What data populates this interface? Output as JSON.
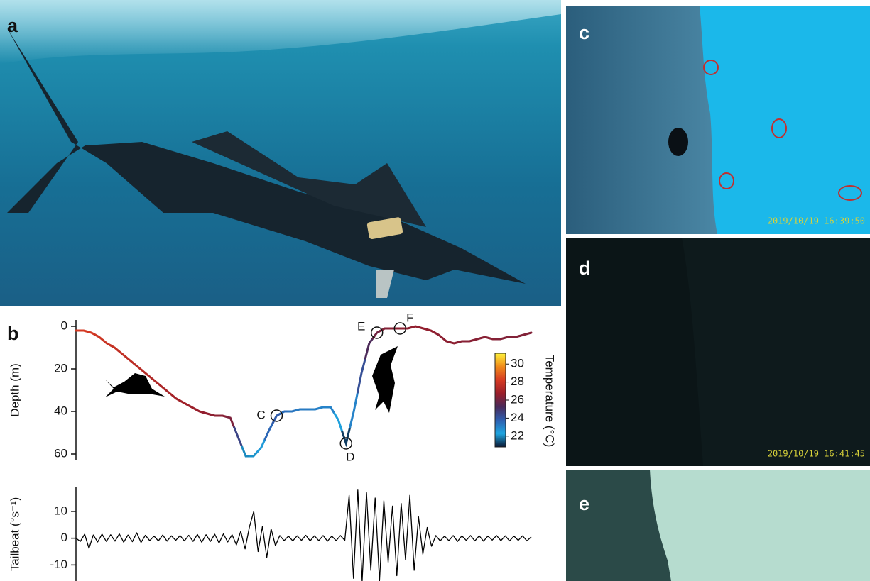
{
  "panels": {
    "a": "a",
    "b": "b",
    "c": "c",
    "d": "d",
    "e": "e"
  },
  "timestamps": {
    "c": "2019/10/19  16:39:50",
    "d": "2019/10/19  16:41:45"
  },
  "chart_data": [
    {
      "type": "line",
      "y_label": "Depth (m)",
      "y_inverted": true,
      "ylim": [
        -3,
        63
      ],
      "yticks": [
        0,
        20,
        40,
        60
      ],
      "values": [
        2,
        2,
        3,
        5,
        8,
        10,
        13,
        16,
        19,
        22,
        25,
        28,
        31,
        34,
        36,
        38,
        40,
        41,
        42,
        42,
        43,
        52,
        61,
        61,
        57,
        49,
        42,
        40,
        40,
        39,
        39,
        39,
        38,
        38,
        44,
        55,
        40,
        22,
        8,
        3,
        1,
        1,
        1,
        1,
        0,
        1,
        2,
        4,
        7,
        8,
        7,
        7,
        6,
        5,
        6,
        6,
        5,
        5,
        4,
        3
      ],
      "temperature": [
        28.2,
        28.2,
        28.1,
        28,
        27.9,
        27.8,
        27.7,
        27.6,
        27.5,
        27.4,
        27.3,
        27.2,
        27.1,
        27,
        26.9,
        26.8,
        26.7,
        26.6,
        26.5,
        26.4,
        26.2,
        24.5,
        22,
        22.1,
        22.5,
        23.6,
        23.9,
        23.5,
        23.3,
        23.2,
        23.2,
        23.1,
        23,
        23,
        22.4,
        21.2,
        23,
        24.2,
        25.3,
        26,
        26.3,
        26.4,
        26.5,
        26.5,
        26.6,
        26.6,
        26.6,
        26.5,
        26.5,
        26.5,
        26.4,
        26.4,
        26.4,
        26.4,
        26.4,
        26.3,
        26.3,
        26.3,
        26.3,
        26.3
      ],
      "annotations": [
        {
          "label": "C"
        },
        {
          "label": "D"
        },
        {
          "label": "E"
        },
        {
          "label": "F"
        }
      ],
      "colorbar": {
        "label": "Temperature (°C)",
        "lim": [
          20.8,
          31.2
        ],
        "ticks": [
          22,
          24,
          26,
          28,
          30
        ],
        "colors": [
          "#0b1733",
          "#1ea5e0",
          "#2e5fb0",
          "#4a2a5a",
          "#9a1e2a",
          "#d63a22",
          "#f08a1a",
          "#fff23a"
        ]
      }
    },
    {
      "type": "line",
      "y_label": "Tailbeat (°s⁻¹)",
      "color": "#000000",
      "ylim": [
        -16,
        19
      ],
      "yticks": [
        -10,
        0,
        10
      ],
      "values": [
        0,
        -1.2,
        1.5,
        -3.8,
        1.2,
        -1.4,
        1.5,
        -1.2,
        1.3,
        -1.1,
        1.6,
        -1.5,
        1.2,
        -1.3,
        2,
        -1.6,
        1.1,
        -0.9,
        0.8,
        -1,
        1.2,
        -1.1,
        0.9,
        -0.8,
        1,
        -1,
        1.1,
        -1.2,
        1.4,
        -1.5,
        1.3,
        -1.2,
        1.5,
        -1.8,
        1.6,
        -1.4,
        1.3,
        -2.5,
        2.6,
        -4,
        4.2,
        10,
        -5,
        4.4,
        -7.2,
        3.5,
        -2.8,
        1,
        -0.9,
        0.8,
        -1,
        0.9,
        -0.8,
        1.1,
        -1,
        0.9,
        -0.9,
        1,
        -1.1,
        0.8,
        -0.9,
        1,
        -0.8,
        16,
        -15,
        18,
        -16,
        17,
        -12,
        15,
        -16,
        14,
        -9,
        12,
        -14,
        13,
        -8,
        16,
        -12,
        8,
        -6,
        4,
        -3,
        1,
        -1,
        0.8,
        -0.9,
        1,
        -1.2,
        0.9,
        -0.8,
        1,
        -1,
        0.9,
        -1.1,
        0.8,
        -0.7,
        1,
        -0.9,
        0.9,
        -1,
        0.8,
        -0.8,
        0.9,
        -1,
        0.5
      ]
    }
  ]
}
